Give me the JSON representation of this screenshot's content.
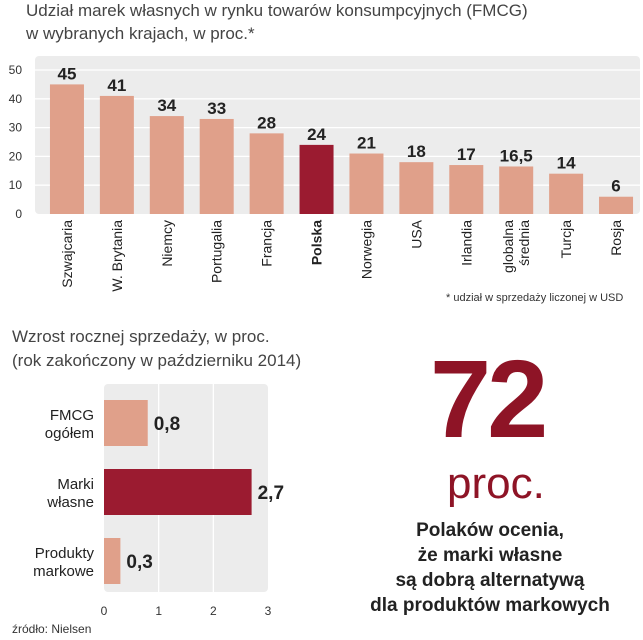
{
  "chart1": {
    "title_line1": "Udział marek własnych w rynku towarów konsumpcyjnych (FMCG)",
    "title_line2": "w wybranych krajach, w proc.*",
    "footnote": "* udział w sprzedaży liczonej w USD",
    "colors": {
      "bar": "#e0a08a",
      "highlight": "#9b1b30",
      "panel": "#ececec",
      "grid": "#ffffff"
    }
  },
  "chart2": {
    "title_line1": "Wzrost rocznej sprzedaży, w proc.",
    "title_line2": "(rok zakończony w październiku 2014)",
    "colors": {
      "bar": "#e0a08a",
      "highlight": "#9b1b30",
      "panel": "#ececec"
    }
  },
  "callout": {
    "value": "72",
    "unit": "proc.",
    "text_lines": [
      "Polaków ocenia,",
      "że marki własne",
      "są dobrą alternatywą",
      "dla produktów markowych"
    ]
  },
  "source": "źródło: Nielsen",
  "chart_data": [
    {
      "type": "bar",
      "title": "Udział marek własnych w rynku towarów konsumpcyjnych (FMCG) w wybranych krajach, w proc.*",
      "categories": [
        "Szwajcaria",
        "W. Brytania",
        "Niemcy",
        "Portugalia",
        "Francja",
        "Polska",
        "Norwegia",
        "USA",
        "Irlandia",
        "globalna średnia",
        "Turcja",
        "Rosja"
      ],
      "values": [
        45,
        41,
        34,
        33,
        28,
        24,
        21,
        18,
        17,
        16.5,
        14,
        6
      ],
      "value_labels": [
        "45",
        "41",
        "34",
        "33",
        "28",
        "24",
        "21",
        "18",
        "17",
        "16,5",
        "14",
        "6"
      ],
      "highlight": "Polska",
      "ylim": [
        0,
        50
      ],
      "yticks": [
        "0",
        "10",
        "20",
        "30",
        "40",
        "50"
      ],
      "grid": true
    },
    {
      "type": "bar",
      "orientation": "horizontal",
      "title": "Wzrost rocznej sprzedaży, w proc. (rok zakończony w październiku 2014)",
      "categories": [
        [
          "FMCG",
          "ogółem"
        ],
        [
          "Marki",
          "własne"
        ],
        [
          "Produkty",
          "markowe"
        ]
      ],
      "values": [
        0.8,
        2.7,
        0.3
      ],
      "value_labels": [
        "0,8",
        "2,7",
        "0,3"
      ],
      "highlight": "Marki własne",
      "xlim": [
        0,
        3
      ],
      "xticks": [
        "0",
        "1",
        "2",
        "3"
      ],
      "grid": true
    }
  ]
}
